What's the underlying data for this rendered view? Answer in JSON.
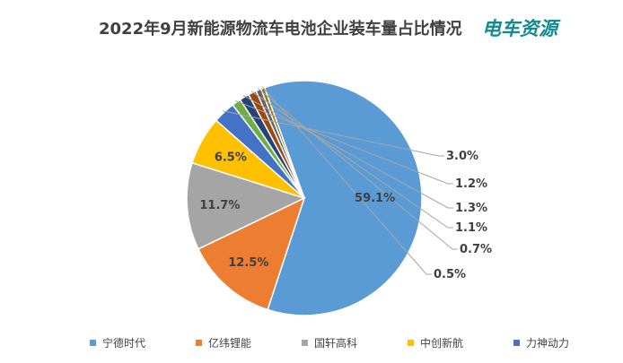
{
  "title": "2022年9月新能源物流车电池企业装车量占比情况",
  "brand": "电车资源",
  "chart_data": {
    "type": "pie",
    "title": "2022年9月新能源物流车电池企业装车量占比情况",
    "slices": [
      {
        "name": "宁德时代",
        "value": 59.1,
        "label": "59.1%",
        "color": "#5b9bd5"
      },
      {
        "name": "亿纬锂能",
        "value": 12.5,
        "label": "12.5%",
        "color": "#ed7d31"
      },
      {
        "name": "国轩高科",
        "value": 11.7,
        "label": "11.7%",
        "color": "#a5a5a5"
      },
      {
        "name": "中创新航",
        "value": 6.5,
        "label": "6.5%",
        "color": "#ffc000"
      },
      {
        "name": "力神动力",
        "value": 3.0,
        "label": "3.0%",
        "color": "#4472c4"
      },
      {
        "name": "",
        "value": 1.2,
        "label": "1.2%",
        "color": "#70ad47"
      },
      {
        "name": "",
        "value": 1.3,
        "label": "1.3%",
        "color": "#264478"
      },
      {
        "name": "",
        "value": 1.1,
        "label": "1.1%",
        "color": "#9e480e"
      },
      {
        "name": "",
        "value": 0.7,
        "label": "0.7%",
        "color": "#636363"
      },
      {
        "name": "",
        "value": 0.5,
        "label": "0.5%",
        "color": "#997300"
      }
    ],
    "legend": [
      "宁德时代",
      "亿纬锂能",
      "国轩高科",
      "中创新航",
      "力神动力"
    ],
    "legend_position": "bottom"
  }
}
